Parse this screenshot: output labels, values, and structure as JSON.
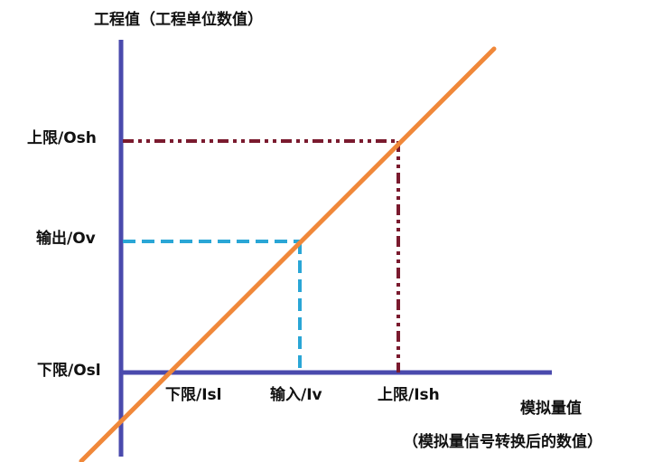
{
  "y_axis_title": "工程值（工程单位数值）",
  "x_axis_title": "模拟量值",
  "x_axis_subtitle": "（模拟量信号转换后的数值）",
  "y_labels": {
    "upper": "上限/Osh",
    "output": "输出/Ov",
    "lower": "下限/Osl"
  },
  "x_labels": {
    "lower": "下限/Isl",
    "input": "输入/Iv",
    "upper": "上限/Ish"
  },
  "colors": {
    "axis": "#4a4aad",
    "line": "#f0883a",
    "upper_guides": "#7a1a2e",
    "output_guides": "#2aa6d6",
    "text": "#111111"
  }
}
